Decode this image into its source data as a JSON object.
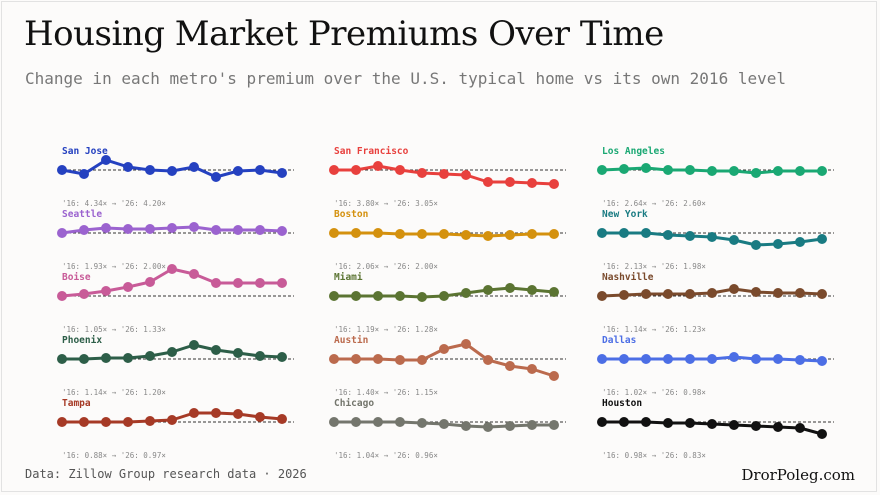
{
  "title": "Housing Market Premiums Over Time",
  "subtitle": "Change in each metro's premium over the U.S. typical home vs its own 2016 level",
  "source": "Data: Zillow Group research data · 2026",
  "brand": "DrorPoleg.com",
  "chart_data": {
    "type": "line",
    "layout": "small-multiples 3x5",
    "baseline_value": 0,
    "x": [
      2016,
      2017,
      2018,
      2019,
      2020,
      2021,
      2022,
      2023,
      2024,
      2025,
      2026
    ],
    "series": [
      {
        "name": "San Jose",
        "color": "#2541c0",
        "note": "'16: 4.34× → '26: 4.20×",
        "values": [
          0,
          -0.04,
          0.1,
          0.03,
          0.0,
          -0.01,
          0.03,
          -0.07,
          -0.01,
          0.0,
          -0.03
        ]
      },
      {
        "name": "San Francisco",
        "color": "#e8403d",
        "note": "'16: 3.80× → '26: 3.05×",
        "values": [
          0,
          0.0,
          0.04,
          0.0,
          -0.03,
          -0.04,
          -0.05,
          -0.12,
          -0.12,
          -0.13,
          -0.14
        ]
      },
      {
        "name": "Los Angeles",
        "color": "#1aa873",
        "note": "'16: 2.64× → '26: 2.60×",
        "values": [
          0,
          0.01,
          0.02,
          0.0,
          0.0,
          -0.01,
          -0.01,
          -0.03,
          -0.01,
          -0.01,
          -0.01
        ]
      },
      {
        "name": "Seattle",
        "color": "#9b63cf",
        "note": "'16: 1.93× → '26: 2.00×",
        "values": [
          0,
          0.03,
          0.05,
          0.04,
          0.04,
          0.05,
          0.06,
          0.03,
          0.03,
          0.03,
          0.02
        ]
      },
      {
        "name": "Boston",
        "color": "#d4910e",
        "note": "'16: 2.06× → '26: 2.00×",
        "values": [
          0,
          0.0,
          0.0,
          -0.01,
          -0.01,
          -0.01,
          -0.02,
          -0.03,
          -0.02,
          -0.01,
          -0.01
        ]
      },
      {
        "name": "New York",
        "color": "#197b82",
        "note": "'16: 2.13× → '26: 1.98×",
        "values": [
          0,
          0.0,
          0.0,
          -0.02,
          -0.03,
          -0.04,
          -0.07,
          -0.12,
          -0.11,
          -0.09,
          -0.06
        ]
      },
      {
        "name": "Boise",
        "color": "#c85b98",
        "note": "'16: 1.05× → '26: 1.33×",
        "values": [
          0,
          0.02,
          0.05,
          0.09,
          0.14,
          0.27,
          0.22,
          0.13,
          0.13,
          0.13,
          0.13
        ]
      },
      {
        "name": "Miami",
        "color": "#5b7432",
        "note": "'16: 1.19× → '26: 1.28×",
        "values": [
          0,
          0.0,
          0.0,
          0.0,
          -0.01,
          0.0,
          0.03,
          0.06,
          0.08,
          0.06,
          0.04
        ]
      },
      {
        "name": "Nashville",
        "color": "#7a4a2c",
        "note": "'16: 1.14× → '26: 1.23×",
        "values": [
          0,
          0.01,
          0.02,
          0.02,
          0.02,
          0.03,
          0.07,
          0.04,
          0.03,
          0.03,
          0.02
        ]
      },
      {
        "name": "Phoenix",
        "color": "#2d5e48",
        "note": "'16: 1.14× → '26: 1.20×",
        "values": [
          0,
          0.0,
          0.01,
          0.01,
          0.03,
          0.07,
          0.14,
          0.09,
          0.06,
          0.03,
          0.02
        ]
      },
      {
        "name": "Austin",
        "color": "#bb6a4d",
        "note": "'16: 1.40× → '26: 1.15×",
        "values": [
          0,
          0.0,
          0.0,
          -0.01,
          -0.01,
          0.1,
          0.15,
          -0.01,
          -0.07,
          -0.1,
          -0.17
        ]
      },
      {
        "name": "Dallas",
        "color": "#4c6ee5",
        "note": "'16: 1.02× → '26: 0.98×",
        "values": [
          0,
          0.0,
          0.0,
          0.0,
          0.0,
          0.0,
          0.02,
          0.0,
          0.0,
          -0.01,
          -0.02
        ]
      },
      {
        "name": "Tampa",
        "color": "#a63a26",
        "note": "'16: 0.88× → '26: 0.97×",
        "values": [
          0,
          0.0,
          0.0,
          0.0,
          0.01,
          0.02,
          0.09,
          0.09,
          0.08,
          0.05,
          0.03
        ]
      },
      {
        "name": "Chicago",
        "color": "#74766d",
        "note": "'16: 1.04× → '26: 0.96×",
        "values": [
          0,
          0.0,
          0.0,
          0.0,
          -0.01,
          -0.02,
          -0.04,
          -0.05,
          -0.04,
          -0.03,
          -0.03
        ]
      },
      {
        "name": "Houston",
        "color": "#111111",
        "note": "'16: 0.98× → '26: 0.83×",
        "values": [
          0,
          0.0,
          0.0,
          -0.01,
          -0.01,
          -0.02,
          -0.03,
          -0.04,
          -0.05,
          -0.06,
          -0.12
        ]
      }
    ]
  }
}
